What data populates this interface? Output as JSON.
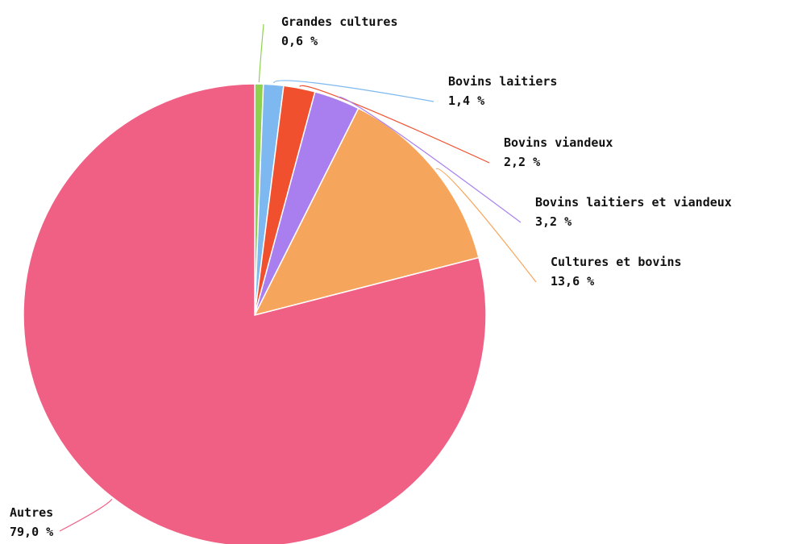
{
  "chart_data": {
    "type": "pie",
    "title": "",
    "slices": [
      {
        "label": "Grandes cultures",
        "value": 0.6,
        "value_text": "0,6 %",
        "color": "#8fd14f"
      },
      {
        "label": "Bovins laitiers",
        "value": 1.4,
        "value_text": "1,4 %",
        "color": "#7db9f0"
      },
      {
        "label": "Bovins viandeux",
        "value": 2.2,
        "value_text": "2,2 %",
        "color": "#f0502e"
      },
      {
        "label": "Bovins laitiers et viandeux",
        "value": 3.2,
        "value_text": "3,2 %",
        "color": "#a97ff0"
      },
      {
        "label": "Cultures et bovins",
        "value": 13.6,
        "value_text": "13,6 %",
        "color": "#f5a55c"
      },
      {
        "label": "Autres",
        "value": 79.0,
        "value_text": "79,0 %",
        "color": "#f06085"
      }
    ]
  }
}
